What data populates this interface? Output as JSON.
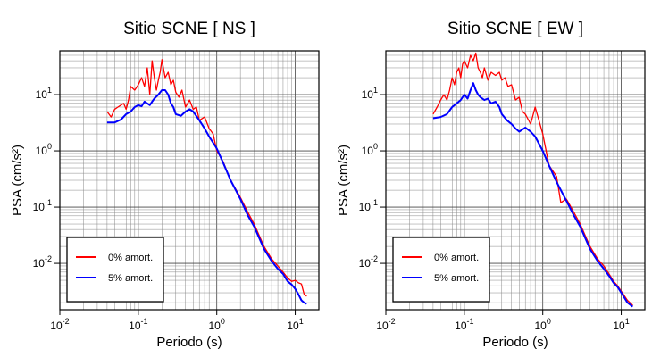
{
  "chart_data": [
    {
      "type": "line",
      "title": "Sitio SCNE [ NS ]",
      "xlabel": "Periodo (s)",
      "ylabel": "PSA (cm/s²)",
      "xscale": "log",
      "yscale": "log",
      "xlim": [
        0.01,
        20
      ],
      "ylim": [
        0.0015,
        60
      ],
      "grid": true,
      "legend_position": "bottom-left",
      "xticks": [
        {
          "base": "10",
          "exp": "-2"
        },
        {
          "base": "10",
          "exp": "-1"
        },
        {
          "base": "10",
          "exp": "0"
        },
        {
          "base": "10",
          "exp": "1"
        }
      ],
      "yticks": [
        {
          "base": "10",
          "exp": "-2"
        },
        {
          "base": "10",
          "exp": "-1"
        },
        {
          "base": "10",
          "exp": "0"
        },
        {
          "base": "10",
          "exp": "1"
        }
      ],
      "series": [
        {
          "name": "0% amort.",
          "color": "#ff0000",
          "x": [
            0.04,
            0.045,
            0.05,
            0.055,
            0.06,
            0.065,
            0.07,
            0.075,
            0.08,
            0.09,
            0.1,
            0.11,
            0.12,
            0.13,
            0.14,
            0.15,
            0.16,
            0.17,
            0.18,
            0.19,
            0.2,
            0.22,
            0.24,
            0.26,
            0.28,
            0.3,
            0.33,
            0.36,
            0.4,
            0.45,
            0.5,
            0.55,
            0.6,
            0.7,
            0.8,
            0.9,
            1.0,
            1.2,
            1.5,
            2.0,
            2.5,
            3.0,
            4.0,
            5.0,
            6.0,
            7.0,
            8.0,
            9.0,
            10.0,
            11.0,
            12.0,
            13.0,
            14.0
          ],
          "y": [
            5.0,
            4.0,
            5.5,
            6.0,
            6.5,
            7.0,
            5.5,
            8.0,
            14.0,
            12.0,
            15.0,
            20.0,
            14.0,
            30.0,
            10.0,
            40.0,
            20.0,
            12.0,
            18.0,
            25.0,
            42.0,
            20.0,
            25.0,
            15.0,
            18.0,
            11.0,
            9.0,
            12.0,
            6.0,
            8.0,
            5.5,
            6.0,
            3.5,
            4.0,
            2.5,
            2.0,
            1.0,
            0.65,
            0.3,
            0.15,
            0.08,
            0.05,
            0.02,
            0.012,
            0.009,
            0.007,
            0.0055,
            0.0048,
            0.005,
            0.0045,
            0.0043,
            0.0028,
            0.0026
          ]
        },
        {
          "name": "5% amort.",
          "color": "#0000ff",
          "x": [
            0.04,
            0.05,
            0.06,
            0.07,
            0.08,
            0.09,
            0.1,
            0.11,
            0.12,
            0.13,
            0.14,
            0.15,
            0.16,
            0.18,
            0.2,
            0.22,
            0.24,
            0.26,
            0.28,
            0.3,
            0.35,
            0.4,
            0.45,
            0.5,
            0.6,
            0.7,
            0.8,
            1.0,
            1.2,
            1.5,
            2.0,
            2.5,
            3.0,
            4.0,
            5.0,
            6.0,
            7.0,
            8.0,
            9.0,
            10.0,
            11.0,
            12.0,
            13.0,
            14.0
          ],
          "y": [
            3.2,
            3.2,
            3.6,
            4.5,
            5.0,
            6.0,
            6.5,
            6.2,
            7.5,
            7.0,
            6.5,
            7.5,
            8.5,
            10.0,
            12.0,
            12.0,
            10.0,
            7.0,
            6.0,
            4.5,
            4.2,
            5.0,
            5.5,
            5.0,
            3.5,
            2.5,
            1.8,
            1.1,
            0.62,
            0.3,
            0.14,
            0.07,
            0.045,
            0.018,
            0.011,
            0.008,
            0.0065,
            0.0048,
            0.0042,
            0.0035,
            0.0028,
            0.0022,
            0.002,
            0.0019
          ]
        }
      ]
    },
    {
      "type": "line",
      "title": "Sitio SCNE [ EW ]",
      "xlabel": "Periodo (s)",
      "ylabel": "PSA (cm/s²)",
      "xscale": "log",
      "yscale": "log",
      "xlim": [
        0.01,
        20
      ],
      "ylim": [
        0.0015,
        60
      ],
      "grid": true,
      "legend_position": "bottom-left",
      "xticks": [
        {
          "base": "10",
          "exp": "-2"
        },
        {
          "base": "10",
          "exp": "-1"
        },
        {
          "base": "10",
          "exp": "0"
        },
        {
          "base": "10",
          "exp": "1"
        }
      ],
      "yticks": [
        {
          "base": "10",
          "exp": "-2"
        },
        {
          "base": "10",
          "exp": "-1"
        },
        {
          "base": "10",
          "exp": "0"
        },
        {
          "base": "10",
          "exp": "1"
        }
      ],
      "series": [
        {
          "name": "0% amort.",
          "color": "#ff0000",
          "x": [
            0.04,
            0.045,
            0.05,
            0.055,
            0.06,
            0.065,
            0.07,
            0.075,
            0.08,
            0.085,
            0.09,
            0.095,
            0.1,
            0.11,
            0.12,
            0.13,
            0.14,
            0.15,
            0.16,
            0.17,
            0.18,
            0.2,
            0.22,
            0.25,
            0.28,
            0.3,
            0.33,
            0.36,
            0.4,
            0.45,
            0.5,
            0.55,
            0.6,
            0.7,
            0.8,
            1.0,
            1.2,
            1.5,
            1.7,
            2.0,
            2.5,
            3.0,
            4.0,
            5.0,
            6.0,
            7.0,
            8.0,
            9.0,
            10.0,
            12.0,
            14.0
          ],
          "y": [
            4.5,
            6.0,
            8.0,
            10.0,
            8.0,
            12.0,
            20.0,
            15.0,
            25.0,
            30.0,
            20.0,
            35.0,
            40.0,
            30.0,
            50.0,
            40.0,
            55.0,
            30.0,
            25.0,
            20.0,
            30.0,
            18.0,
            25.0,
            22.0,
            25.0,
            18.0,
            20.0,
            14.0,
            15.0,
            8.0,
            9.0,
            5.0,
            4.5,
            3.0,
            6.0,
            2.0,
            0.55,
            0.35,
            0.12,
            0.14,
            0.08,
            0.05,
            0.02,
            0.012,
            0.009,
            0.0065,
            0.0048,
            0.004,
            0.0032,
            0.0022,
            0.0018
          ]
        },
        {
          "name": "5% amort.",
          "color": "#0000ff",
          "x": [
            0.04,
            0.05,
            0.06,
            0.07,
            0.08,
            0.09,
            0.1,
            0.11,
            0.12,
            0.13,
            0.14,
            0.15,
            0.16,
            0.18,
            0.2,
            0.22,
            0.25,
            0.28,
            0.3,
            0.35,
            0.4,
            0.45,
            0.5,
            0.6,
            0.7,
            0.8,
            1.0,
            1.2,
            1.5,
            2.0,
            2.5,
            3.0,
            4.0,
            5.0,
            6.0,
            7.0,
            8.0,
            9.0,
            10.0,
            12.0,
            14.0
          ],
          "y": [
            3.8,
            4.0,
            4.5,
            6.0,
            7.0,
            8.0,
            10.0,
            8.5,
            12.0,
            16.0,
            12.0,
            10.0,
            9.0,
            8.0,
            8.5,
            7.0,
            7.5,
            6.0,
            4.5,
            3.5,
            3.0,
            2.5,
            2.2,
            2.6,
            2.2,
            1.8,
            1.0,
            0.55,
            0.28,
            0.13,
            0.07,
            0.045,
            0.018,
            0.011,
            0.008,
            0.006,
            0.0045,
            0.0038,
            0.003,
            0.002,
            0.0017
          ]
        }
      ]
    }
  ]
}
